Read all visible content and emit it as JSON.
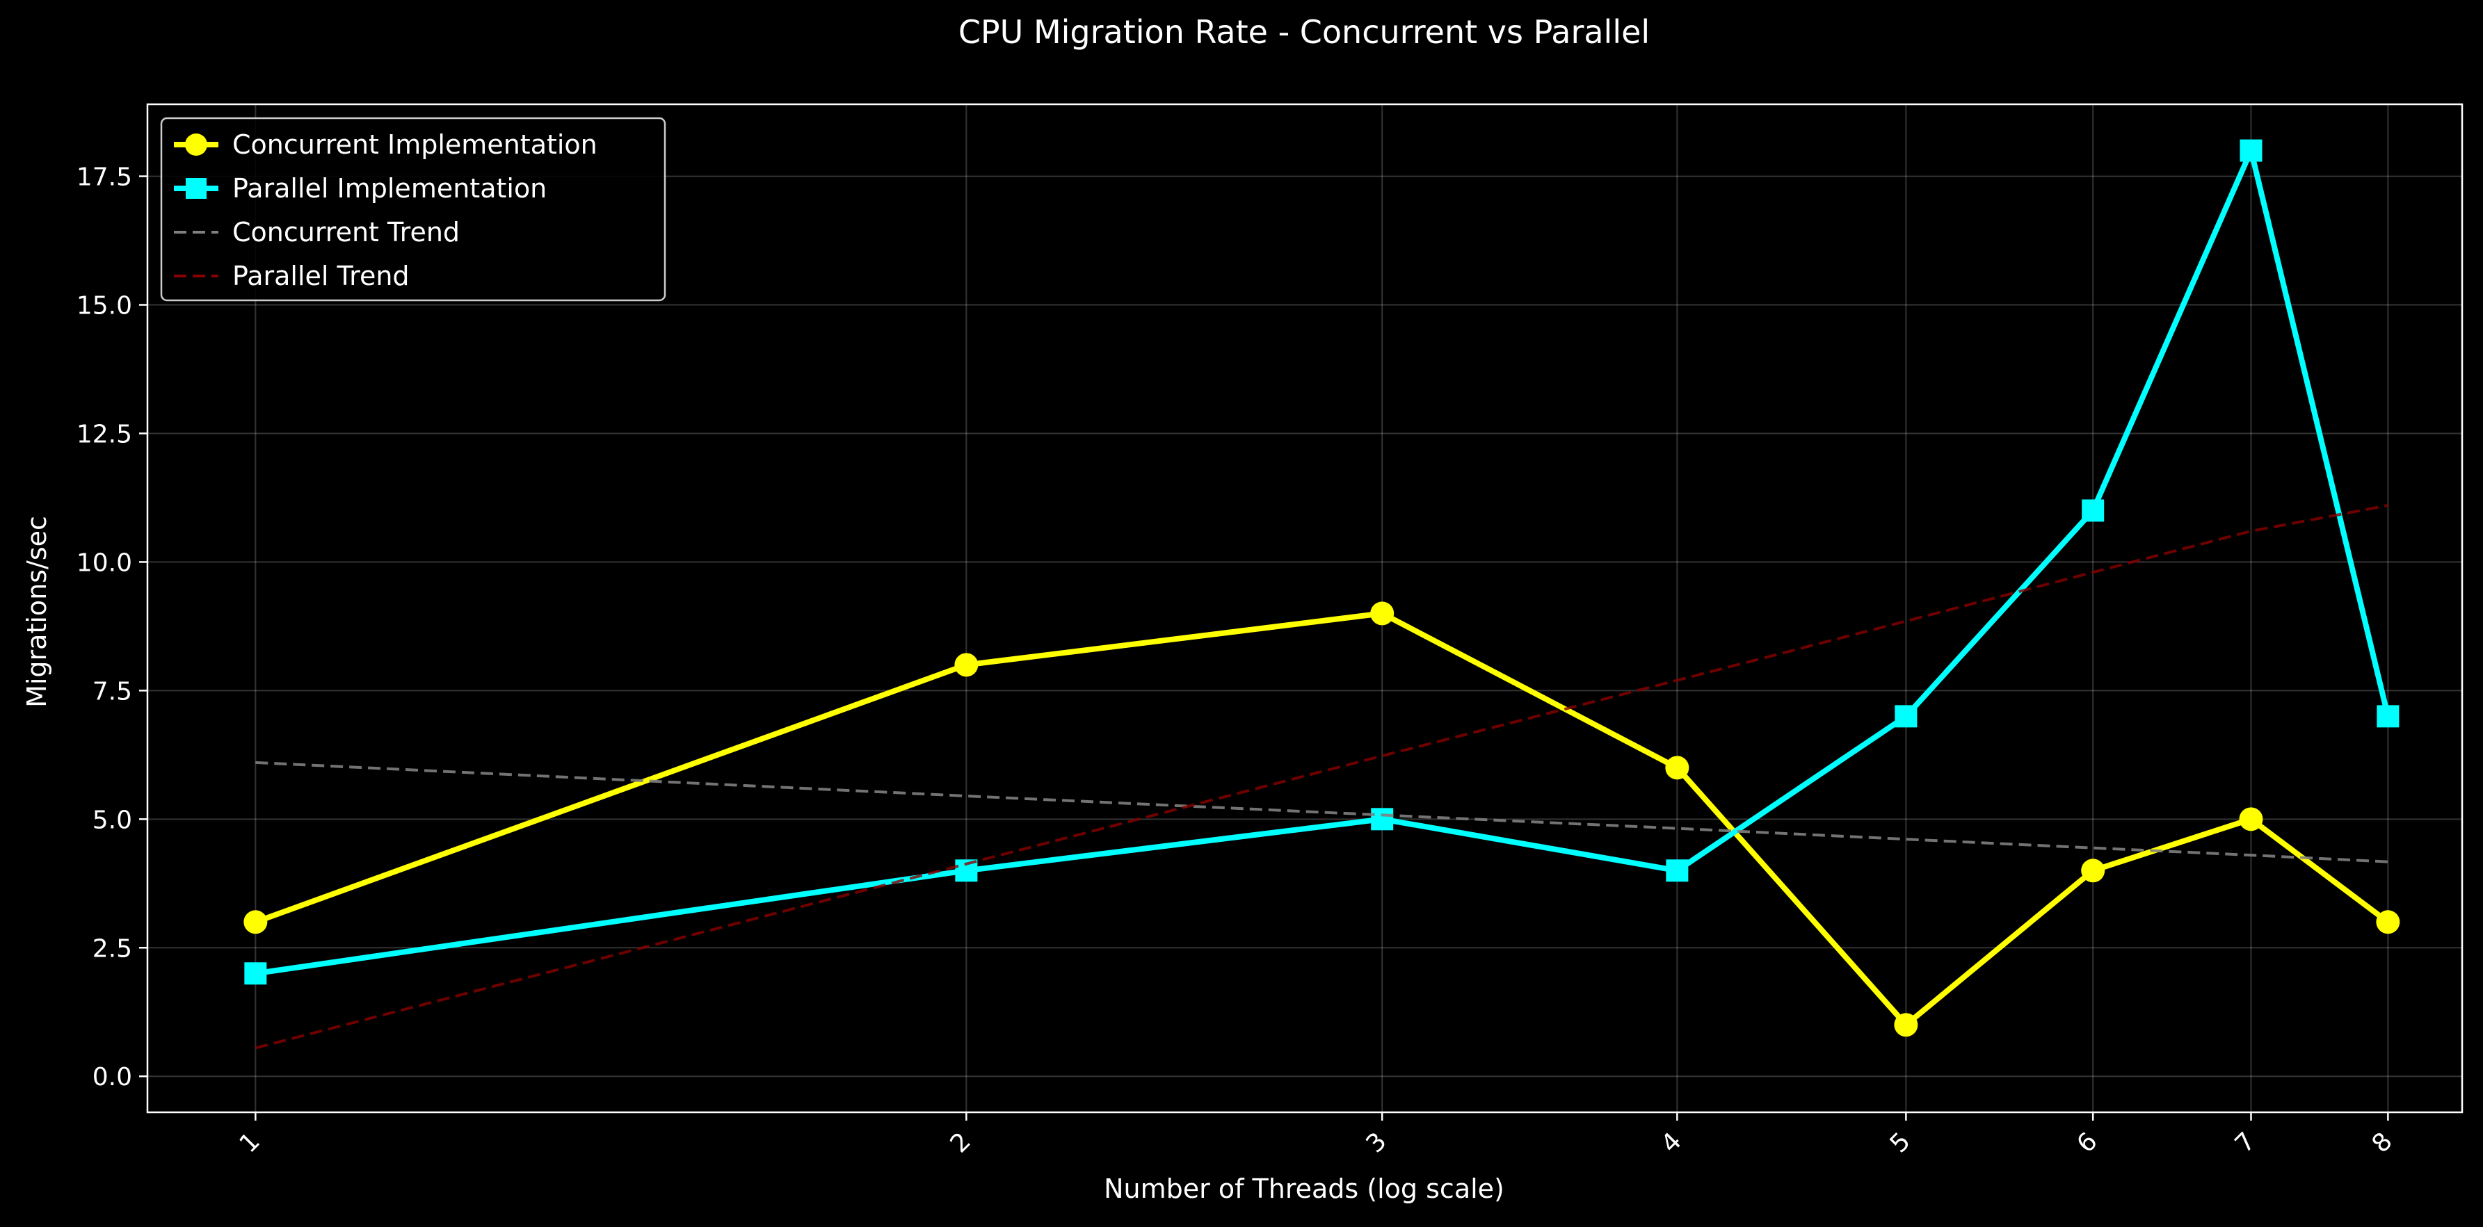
{
  "chart_data": {
    "type": "line",
    "title": "CPU Migration Rate - Concurrent vs Parallel",
    "xlabel": "Number of Threads (log scale)",
    "ylabel": "Migrations/sec",
    "x_scale": "log",
    "x": [
      1,
      2,
      3,
      4,
      5,
      6,
      7,
      8
    ],
    "x_tick_labels": [
      "1",
      "2",
      "3",
      "4",
      "5",
      "6",
      "7",
      "8"
    ],
    "xlim": [
      0.9,
      8.6
    ],
    "ylim": [
      -0.7,
      18.9
    ],
    "y_ticks": [
      0.0,
      2.5,
      5.0,
      7.5,
      10.0,
      12.5,
      15.0,
      17.5
    ],
    "y_tick_labels": [
      "0.0",
      "2.5",
      "5.0",
      "7.5",
      "10.0",
      "12.5",
      "15.0",
      "17.5"
    ],
    "grid": true,
    "legend_position": "top-left",
    "series": [
      {
        "name": "Concurrent Implementation",
        "values": [
          3,
          8,
          9,
          6,
          1,
          4,
          5,
          3
        ],
        "color": "#ffff00",
        "marker": "circle",
        "line_style": "solid"
      },
      {
        "name": "Parallel Implementation",
        "values": [
          2,
          4,
          5,
          4,
          7,
          11,
          18,
          7
        ],
        "color": "#00ffff",
        "marker": "square",
        "line_style": "solid"
      },
      {
        "name": "Concurrent Trend",
        "values": [
          6.1,
          5.45,
          5.08,
          4.82,
          4.61,
          4.44,
          4.3,
          4.17
        ],
        "color": "#808080",
        "marker": "none",
        "line_style": "dashed"
      },
      {
        "name": "Parallel Trend",
        "values": [
          0.55,
          4.13,
          6.23,
          7.7,
          8.85,
          9.8,
          10.6,
          11.1
        ],
        "color": "#8b0000",
        "marker": "none",
        "line_style": "dashed"
      }
    ]
  }
}
